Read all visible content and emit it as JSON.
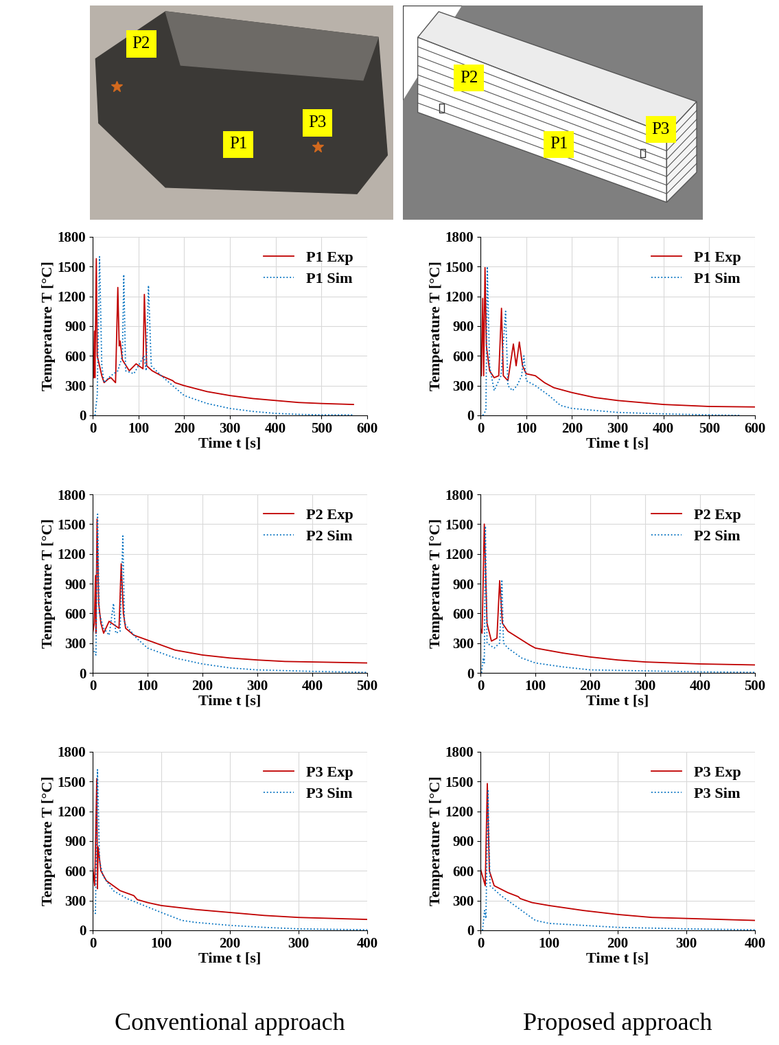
{
  "images": [
    {
      "labels": [
        "P2",
        "P1",
        "P3"
      ]
    },
    {
      "labels": [
        "P2",
        "P1",
        "P3"
      ]
    }
  ],
  "captions": [
    "Conventional approach",
    "Proposed approach"
  ],
  "chart_data": [
    {
      "type": "line",
      "x_label": "Time t [s]",
      "y_label": "Temperature T [°C]",
      "xlim": [
        0,
        600
      ],
      "xticks": [
        0,
        100,
        200,
        300,
        400,
        500,
        600
      ],
      "ylim": [
        0,
        1800
      ],
      "yticks": [
        0,
        300,
        600,
        900,
        1200,
        1500,
        1800
      ],
      "grid": true,
      "legend": "upper right",
      "series": [
        {
          "name": "P1 Exp",
          "color": "#c00000",
          "line_style": "solid",
          "x": [
            2,
            4,
            5,
            8,
            10,
            20,
            25,
            35,
            40,
            50,
            55,
            58,
            60,
            65,
            80,
            95,
            110,
            113,
            118,
            130,
            150,
            175,
            180,
            200,
            250,
            300,
            350,
            400,
            450,
            500,
            570
          ],
          "values": [
            380,
            850,
            380,
            1580,
            600,
            400,
            330,
            370,
            380,
            330,
            1290,
            700,
            750,
            560,
            450,
            520,
            470,
            1220,
            500,
            450,
            400,
            350,
            330,
            300,
            240,
            200,
            170,
            150,
            130,
            120,
            110
          ]
        },
        {
          "name": "P1 Sim",
          "color": "#0070c0",
          "line_style": "dotted",
          "x": [
            5,
            10,
            15,
            20,
            25,
            35,
            40,
            55,
            65,
            68,
            72,
            90,
            100,
            112,
            117,
            122,
            128,
            150,
            175,
            200,
            250,
            300,
            350,
            400,
            450,
            500,
            570
          ],
          "values": [
            0,
            200,
            1600,
            500,
            330,
            380,
            400,
            450,
            600,
            1420,
            450,
            420,
            500,
            600,
            450,
            1310,
            500,
            400,
            300,
            200,
            120,
            70,
            40,
            20,
            10,
            5,
            5
          ]
        }
      ]
    },
    {
      "type": "line",
      "x_label": "Time t [s]",
      "y_label": "Temperature T [°C]",
      "xlim": [
        0,
        600
      ],
      "xticks": [
        0,
        100,
        200,
        300,
        400,
        500,
        600
      ],
      "ylim": [
        0,
        1800
      ],
      "yticks": [
        0,
        300,
        600,
        900,
        1200,
        1500,
        1800
      ],
      "grid": true,
      "legend": "upper right",
      "series": [
        {
          "name": "P1 Exp",
          "color": "#c00000",
          "line_style": "solid",
          "x": [
            2,
            5,
            7,
            10,
            13,
            20,
            30,
            40,
            46,
            50,
            60,
            72,
            78,
            85,
            92,
            100,
            120,
            140,
            160,
            200,
            250,
            300,
            350,
            400,
            450,
            500,
            600
          ],
          "values": [
            400,
            1180,
            400,
            1490,
            700,
            450,
            380,
            400,
            1080,
            400,
            350,
            720,
            500,
            740,
            500,
            420,
            400,
            330,
            280,
            230,
            180,
            150,
            130,
            110,
            100,
            90,
            85
          ]
        },
        {
          "name": "P1 Sim",
          "color": "#0070c0",
          "line_style": "dotted",
          "x": [
            5,
            12,
            15,
            20,
            30,
            45,
            55,
            60,
            70,
            80,
            90,
            95,
            100,
            120,
            150,
            175,
            200,
            250,
            300,
            400,
            500,
            570
          ],
          "values": [
            0,
            50,
            1500,
            500,
            250,
            400,
            1050,
            300,
            250,
            300,
            400,
            600,
            350,
            300,
            200,
            100,
            70,
            50,
            30,
            15,
            5,
            0
          ]
        }
      ]
    },
    {
      "type": "line",
      "x_label": "Time t [s]",
      "y_label": "Temperature T [°C]",
      "xlim": [
        0,
        500
      ],
      "xticks": [
        0,
        100,
        200,
        300,
        400,
        500
      ],
      "ylim": [
        0,
        1800
      ],
      "yticks": [
        0,
        300,
        600,
        900,
        1200,
        1500,
        1800
      ],
      "grid": true,
      "legend": "upper right",
      "series": [
        {
          "name": "P2 Exp",
          "color": "#c00000",
          "line_style": "solid",
          "x": [
            0,
            3,
            5,
            6,
            8,
            11,
            15,
            20,
            30,
            40,
            48,
            52,
            56,
            60,
            75,
            100,
            125,
            130,
            150,
            200,
            250,
            300,
            350,
            400,
            500
          ],
          "values": [
            400,
            500,
            980,
            400,
            1550,
            700,
            500,
            400,
            520,
            480,
            450,
            1100,
            600,
            450,
            380,
            330,
            280,
            270,
            230,
            180,
            150,
            130,
            115,
            110,
            100
          ]
        },
        {
          "name": "P2 Sim",
          "color": "#0070c0",
          "line_style": "dotted",
          "x": [
            0,
            6,
            9,
            12,
            20,
            30,
            38,
            42,
            50,
            55,
            58,
            65,
            80,
            100,
            150,
            200,
            250,
            300,
            400,
            500
          ],
          "values": [
            250,
            180,
            1600,
            600,
            450,
            380,
            700,
            400,
            420,
            1380,
            500,
            450,
            350,
            250,
            150,
            90,
            50,
            30,
            15,
            5
          ]
        }
      ]
    },
    {
      "type": "line",
      "x_label": "Time t [s]",
      "y_label": "Temperature T [°C]",
      "xlim": [
        0,
        500
      ],
      "xticks": [
        0,
        100,
        200,
        300,
        400,
        500
      ],
      "ylim": [
        0,
        1800
      ],
      "yticks": [
        0,
        300,
        600,
        900,
        1200,
        1500,
        1800
      ],
      "grid": true,
      "legend": "upper right",
      "series": [
        {
          "name": "P2 Exp",
          "color": "#c00000",
          "line_style": "solid",
          "x": [
            0,
            3,
            7,
            12,
            20,
            30,
            35,
            40,
            50,
            70,
            90,
            100,
            150,
            200,
            250,
            300,
            400,
            500
          ],
          "values": [
            450,
            400,
            1500,
            500,
            320,
            350,
            930,
            500,
            420,
            350,
            280,
            250,
            200,
            160,
            130,
            110,
            90,
            80
          ]
        },
        {
          "name": "P2 Sim",
          "color": "#0070c0",
          "line_style": "dotted",
          "x": [
            2,
            5,
            7,
            9,
            12,
            25,
            35,
            39,
            42,
            50,
            75,
            100,
            150,
            200,
            300,
            400,
            500
          ],
          "values": [
            0,
            150,
            100,
            1480,
            300,
            250,
            300,
            940,
            300,
            250,
            150,
            100,
            60,
            30,
            20,
            10,
            5
          ]
        }
      ]
    },
    {
      "type": "line",
      "x_label": "Time t [s]",
      "y_label": "Temperature T [°C]",
      "xlim": [
        0,
        400
      ],
      "xticks": [
        0,
        100,
        200,
        300,
        400
      ],
      "ylim": [
        0,
        1800
      ],
      "yticks": [
        0,
        300,
        600,
        900,
        1200,
        1500,
        1800
      ],
      "grid": true,
      "legend": "upper right",
      "series": [
        {
          "name": "P3 Exp",
          "color": "#c00000",
          "line_style": "solid",
          "x": [
            0,
            3,
            6,
            7,
            8,
            12,
            20,
            40,
            60,
            65,
            80,
            100,
            150,
            200,
            250,
            300,
            400
          ],
          "values": [
            640,
            450,
            1530,
            420,
            840,
            600,
            500,
            400,
            350,
            310,
            280,
            250,
            210,
            180,
            150,
            130,
            110
          ]
        },
        {
          "name": "P3 Sim",
          "color": "#0070c0",
          "line_style": "dotted",
          "x": [
            0,
            4,
            7,
            10,
            15,
            30,
            50,
            75,
            100,
            130,
            150,
            200,
            250,
            300,
            400
          ],
          "values": [
            200,
            170,
            1620,
            700,
            550,
            400,
            320,
            250,
            180,
            100,
            80,
            50,
            30,
            15,
            5
          ]
        }
      ]
    },
    {
      "type": "line",
      "x_label": "Time t [s]",
      "y_label": "Temperature T [°C]",
      "xlim": [
        0,
        400
      ],
      "xticks": [
        0,
        100,
        200,
        300,
        400
      ],
      "ylim": [
        0,
        1800
      ],
      "yticks": [
        0,
        300,
        600,
        900,
        1200,
        1500,
        1800
      ],
      "grid": true,
      "legend": "upper right",
      "series": [
        {
          "name": "P3 Exp",
          "color": "#c00000",
          "line_style": "solid",
          "x": [
            0,
            7,
            10,
            13,
            20,
            40,
            55,
            58,
            75,
            100,
            150,
            200,
            250,
            300,
            400
          ],
          "values": [
            620,
            450,
            1480,
            600,
            450,
            380,
            340,
            320,
            280,
            250,
            200,
            160,
            130,
            120,
            100
          ]
        },
        {
          "name": "P3 Sim",
          "color": "#0070c0",
          "line_style": "dotted",
          "x": [
            3,
            6,
            8,
            11,
            14,
            30,
            60,
            80,
            100,
            150,
            200,
            300,
            400
          ],
          "values": [
            0,
            200,
            120,
            1420,
            450,
            350,
            200,
            100,
            70,
            50,
            30,
            15,
            5
          ]
        }
      ]
    }
  ]
}
